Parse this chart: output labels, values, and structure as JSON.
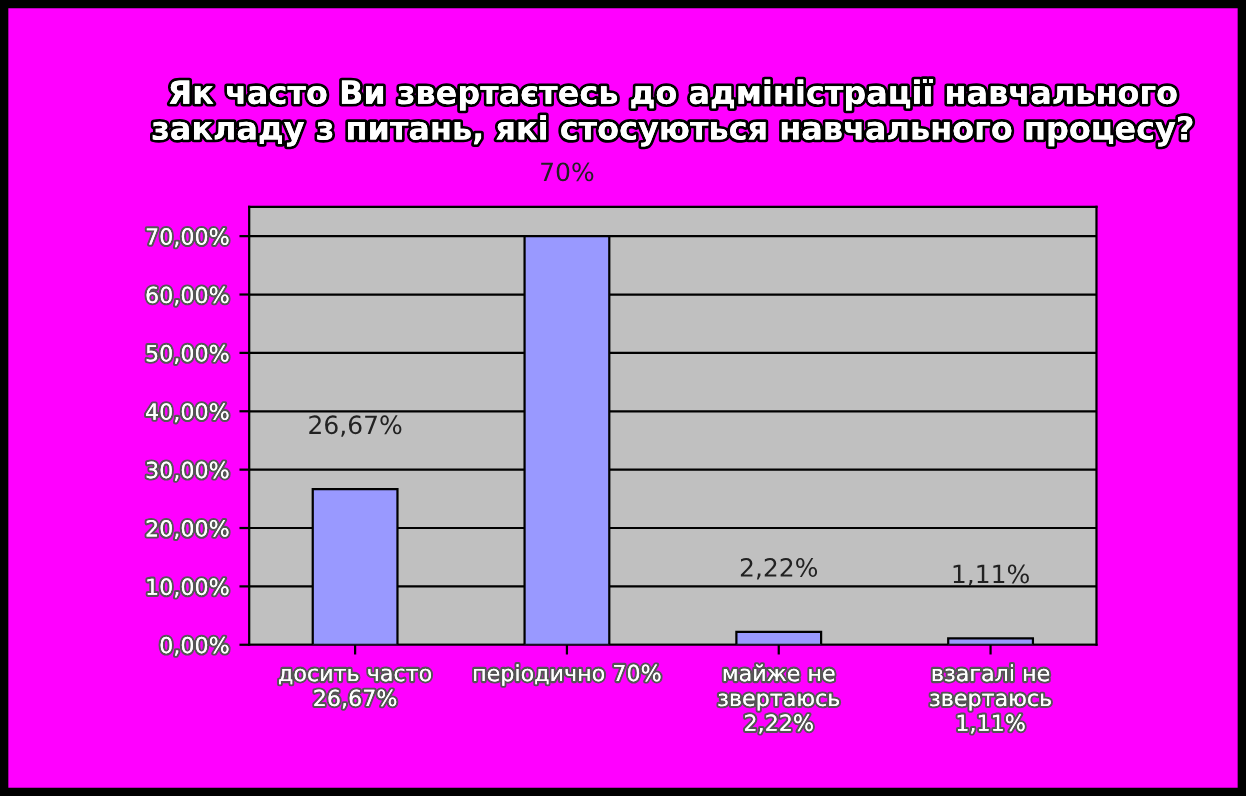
{
  "chart_data": {
    "type": "bar",
    "title": "Як часто Ви звертаєтесь до адміністрації навчального закладу з питань, які стосуються навчального процесу?",
    "categories": [
      "досить часто\n26,67%",
      "періодично 70%",
      "майже не\nзвертаюсь\n2,22%",
      "взагалі не\nзвертаюсь\n1,11%"
    ],
    "values": [
      26.67,
      70,
      2.22,
      1.11
    ],
    "value_labels": [
      "26,67%",
      "70%",
      "2,22%",
      "1,11%"
    ],
    "color": "#9999ff",
    "ylim": [
      0,
      75
    ],
    "yticks": [
      {
        "value": 0,
        "label": "0,00%"
      },
      {
        "value": 10,
        "label": "10,00%"
      },
      {
        "value": 20,
        "label": "20,00%"
      },
      {
        "value": 30,
        "label": "30,00%"
      },
      {
        "value": 40,
        "label": "40,00%"
      },
      {
        "value": 50,
        "label": "50,00%"
      },
      {
        "value": 60,
        "label": "60,00%"
      },
      {
        "value": 70,
        "label": "70,00%"
      }
    ],
    "grid": "y"
  }
}
